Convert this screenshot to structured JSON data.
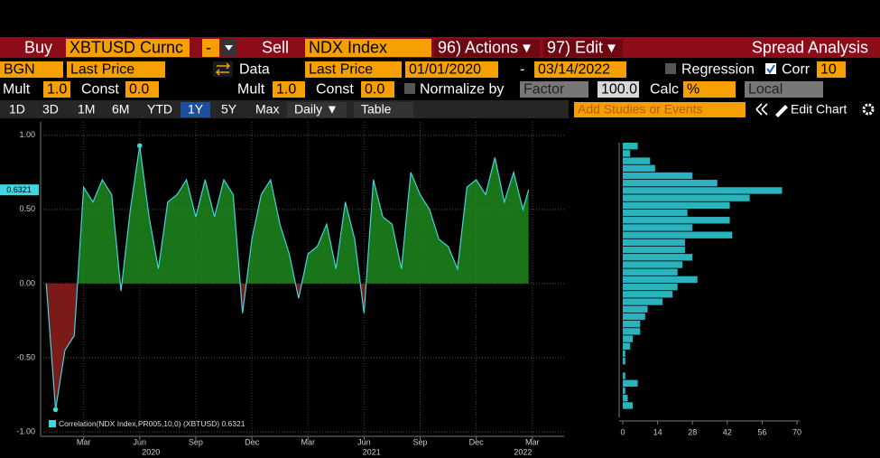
{
  "toolbar": {
    "row1": [
      "Buy",
      "XBTUSD Curnc",
      "-",
      "Sell",
      "NDX Index",
      "96) Actions ▾",
      "97) Edit ▾",
      "Spread Analysis"
    ],
    "row2": [
      "BGN",
      "Last Price",
      "Data",
      "Last Price",
      "01/01/2020",
      "-",
      "03/14/2022",
      "Regression",
      "Corr",
      "10"
    ],
    "row3": [
      "Mult",
      "1.0",
      "Const",
      "0.0",
      "Mult",
      "1.0",
      "Const",
      "0.0",
      "Normalize by",
      "Factor",
      "100.0",
      "Calc",
      "%",
      "Local"
    ],
    "row4": [
      "1D",
      "3D",
      "1M",
      "6M",
      "YTD",
      "1Y",
      "5Y",
      "Max",
      "Daily ▼",
      "Table",
      "Add Studies or Events",
      "Edit Chart"
    ]
  },
  "chart_data": [
    {
      "type": "area",
      "x": [
        0,
        0.5,
        1,
        1.5,
        2,
        2.5,
        3,
        3.5,
        4,
        4.5,
        5,
        5.5,
        6,
        6.5,
        7,
        7.5,
        8,
        8.5,
        9,
        9.5,
        10,
        10.5,
        11,
        11.5,
        12,
        12.5,
        13,
        13.5,
        14,
        14.5,
        15,
        15.5,
        16,
        16.5,
        17,
        17.5,
        18,
        18.5,
        19,
        19.5,
        20,
        20.5,
        21,
        21.5,
        22,
        22.5,
        23,
        23.5,
        24,
        24.5,
        25,
        25.5,
        25.8
      ],
      "series": [
        {
          "name": "Correlation(NDX Index,PR005,10,0) (XBTUSD) 0.6321",
          "color": "#3fd6e0",
          "values": [
            0.0,
            -0.85,
            -0.45,
            -0.35,
            0.65,
            0.55,
            0.7,
            0.6,
            -0.05,
            0.5,
            0.93,
            0.45,
            0.1,
            0.55,
            0.6,
            0.7,
            0.45,
            0.7,
            0.45,
            0.7,
            0.6,
            -0.2,
            0.3,
            0.6,
            0.7,
            0.4,
            0.2,
            -0.1,
            0.2,
            0.25,
            0.4,
            0.1,
            0.55,
            0.3,
            -0.2,
            0.7,
            0.45,
            0.4,
            0.1,
            0.75,
            0.6,
            0.5,
            0.3,
            0.25,
            0.1,
            0.65,
            0.7,
            0.6,
            0.85,
            0.55,
            0.75,
            0.5,
            0.6321
          ]
        }
      ],
      "last_value": 0.6321,
      "positive_color": "#1f8a1f",
      "negative_color": "#8a1c1c",
      "xlim": [
        -0.3,
        27.7
      ],
      "ylim": [
        -1.03,
        1.09
      ],
      "xticks": [
        {
          "value": 2,
          "label": "Mar"
        },
        {
          "value": 5,
          "label": "Jun"
        },
        {
          "value": 8,
          "label": "Sep"
        },
        {
          "value": 11,
          "label": "Dec"
        },
        {
          "value": 14,
          "label": "Mar"
        },
        {
          "value": 17,
          "label": "Jun"
        },
        {
          "value": 20,
          "label": "Sep"
        },
        {
          "value": 23,
          "label": "Dec"
        },
        {
          "value": 26,
          "label": "Mar"
        }
      ],
      "year_labels": [
        {
          "value": 5.6,
          "label": "2020"
        },
        {
          "value": 17.4,
          "label": "2021"
        },
        {
          "value": 25.5,
          "label": "2022"
        }
      ],
      "yticks": [
        {
          "value": -1,
          "label": "-1.00"
        },
        {
          "value": -0.5,
          "label": "-0.50"
        },
        {
          "value": 0,
          "label": "0.00"
        },
        {
          "value": 0.5,
          "label": "0.50"
        },
        {
          "value": 1,
          "label": "1.00"
        }
      ],
      "grid": true
    },
    {
      "type": "histogram",
      "orientation": "horizontal",
      "color": "#2ab3bd",
      "bins": [
        -0.85,
        -0.8,
        -0.75,
        -0.7,
        -0.65,
        -0.6,
        -0.55,
        -0.5,
        -0.45,
        -0.4,
        -0.35,
        -0.3,
        -0.25,
        -0.2,
        -0.15,
        -0.1,
        -0.05,
        0,
        0.05,
        0.1,
        0.15,
        0.2,
        0.25,
        0.3,
        0.35,
        0.4,
        0.45,
        0.5,
        0.55,
        0.6,
        0.65,
        0.7,
        0.75,
        0.8,
        0.85,
        0.9,
        0.95
      ],
      "values": [
        4,
        2,
        1,
        6,
        1,
        0,
        1,
        1,
        3,
        4,
        7,
        7,
        9,
        10,
        16,
        20,
        22,
        30,
        22,
        24,
        28,
        25,
        25,
        44,
        28,
        43,
        26,
        43,
        51,
        64,
        38,
        28,
        13,
        11,
        3,
        6
      ],
      "xlim": [
        0,
        70
      ],
      "xticks": [
        0,
        14,
        28,
        42,
        56,
        70
      ]
    }
  ]
}
